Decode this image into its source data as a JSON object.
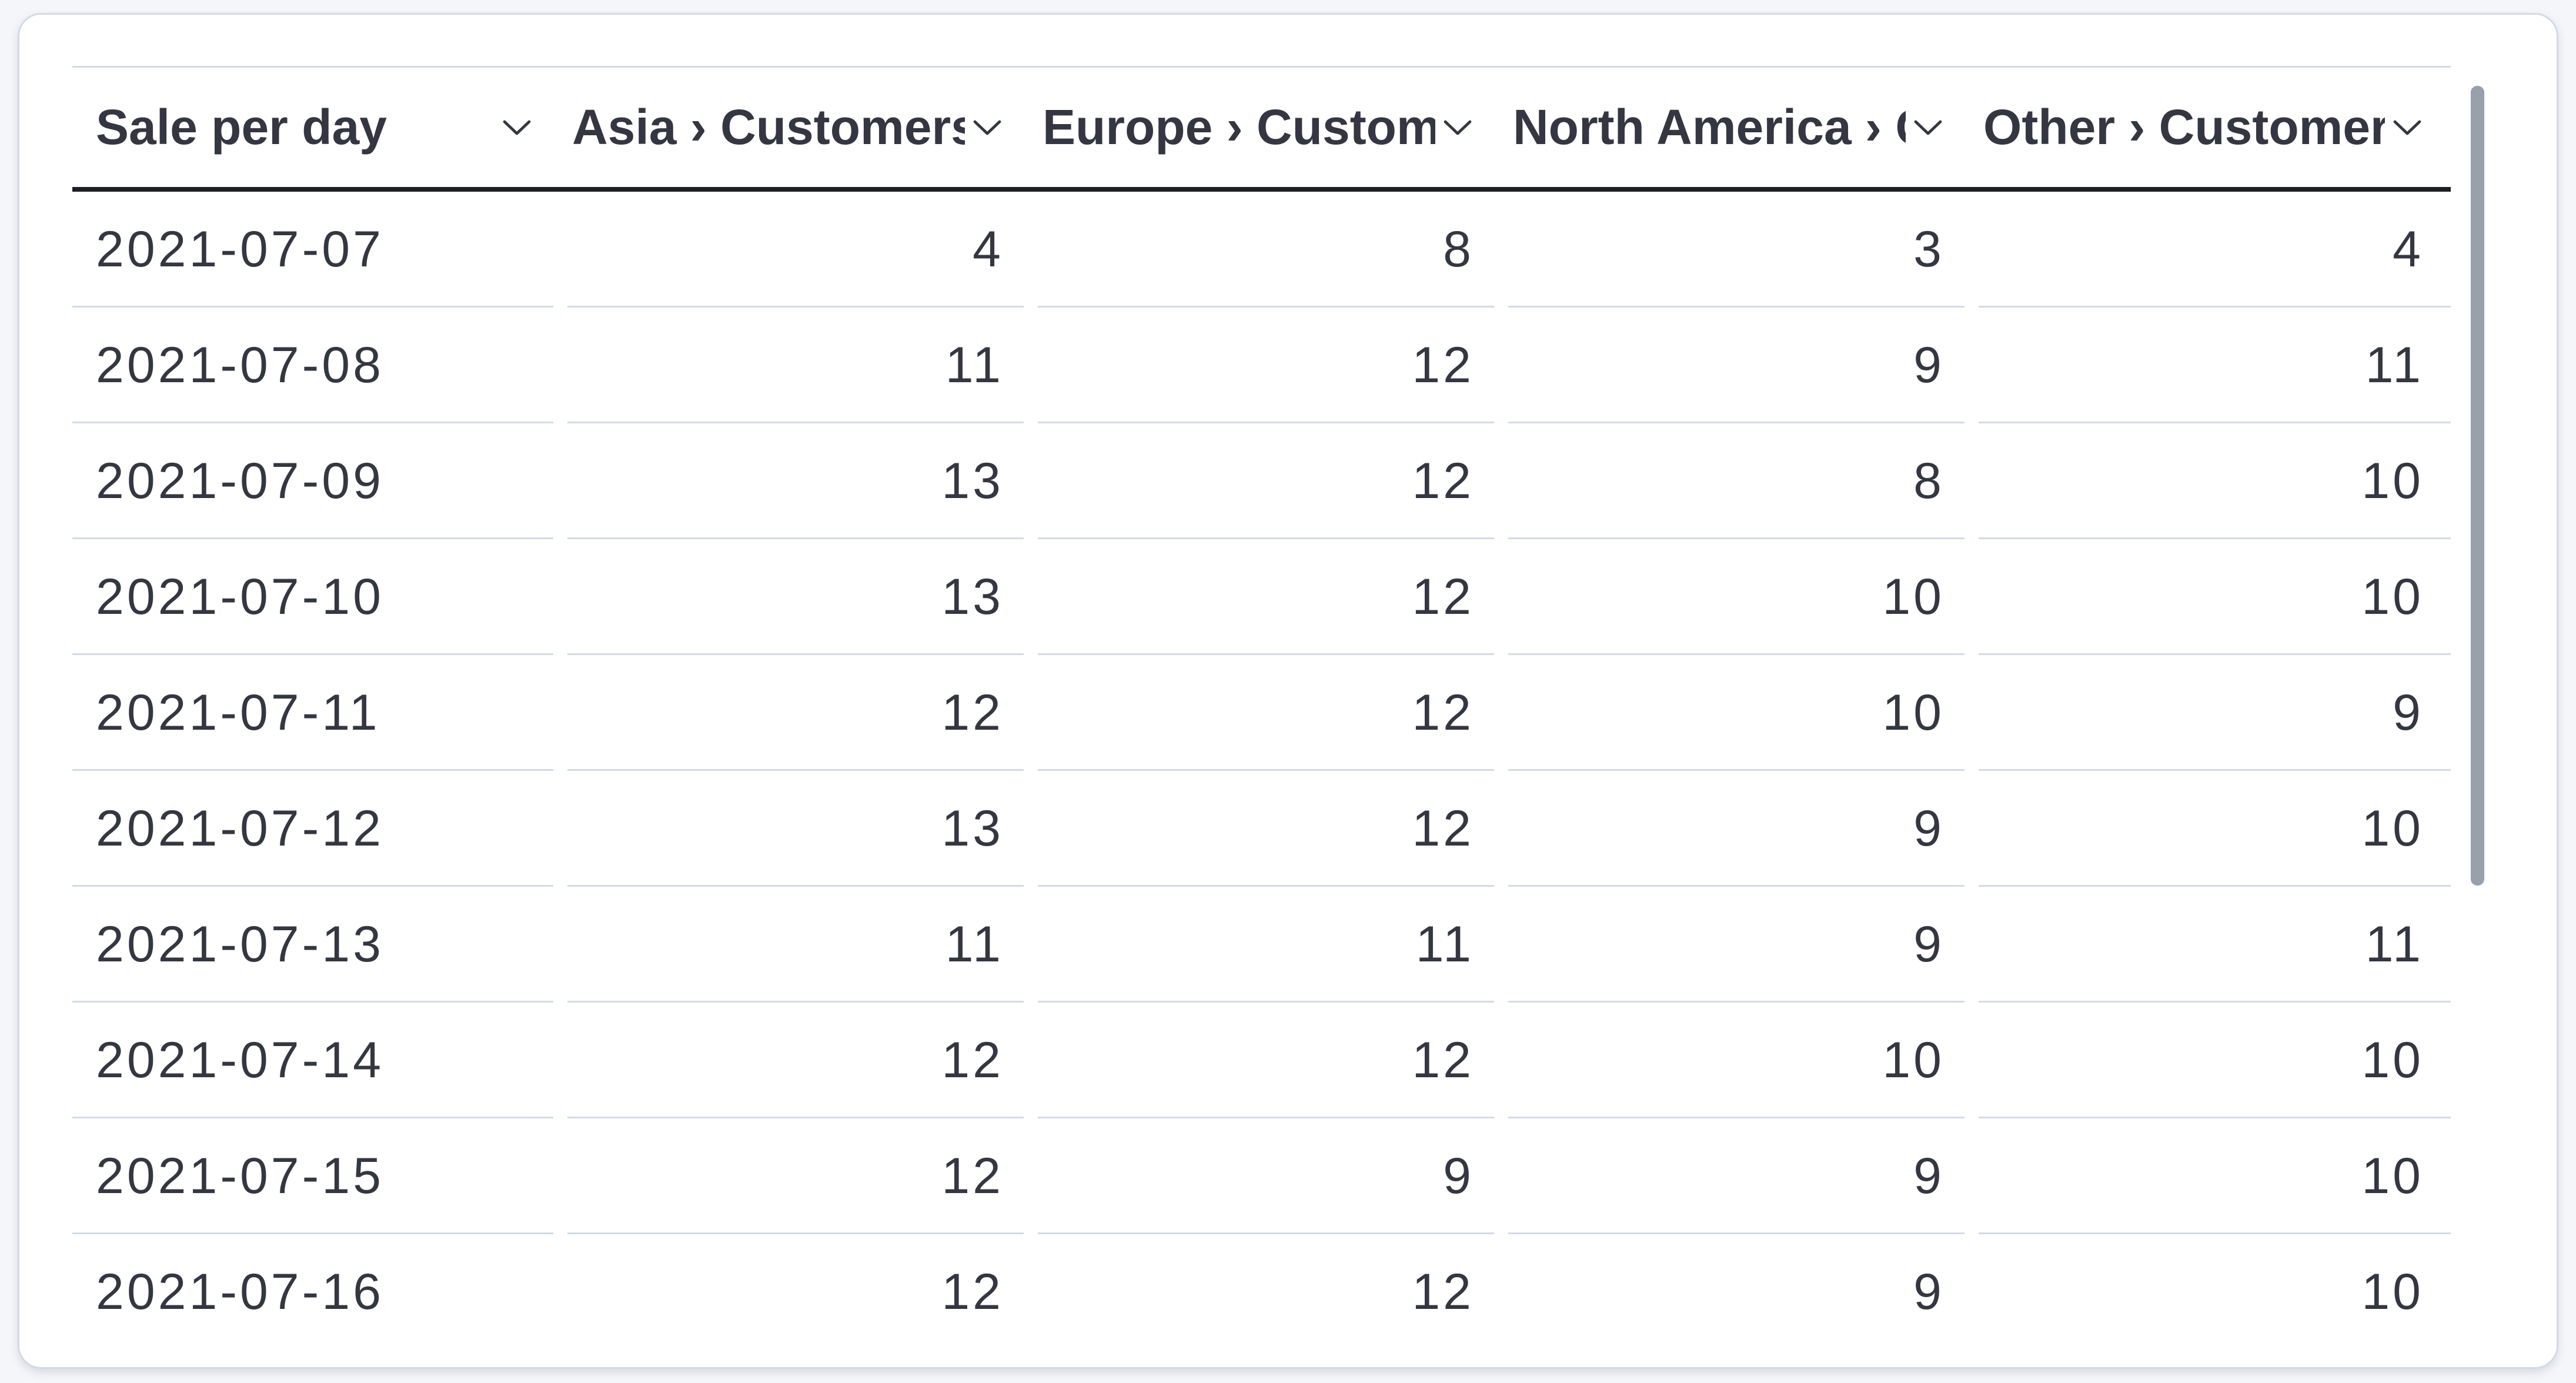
{
  "datatable": {
    "columns": [
      {
        "label": "Sale per day",
        "align": "left"
      },
      {
        "label": "Asia › Customers",
        "align": "right"
      },
      {
        "label": "Europe › Customers",
        "align": "right"
      },
      {
        "label": "North America › Customers",
        "align": "right"
      },
      {
        "label": "Other › Customers",
        "align": "right"
      }
    ],
    "rows": [
      [
        "2021-07-07",
        "4",
        "8",
        "3",
        "4"
      ],
      [
        "2021-07-08",
        "11",
        "12",
        "9",
        "11"
      ],
      [
        "2021-07-09",
        "13",
        "12",
        "8",
        "10"
      ],
      [
        "2021-07-10",
        "13",
        "12",
        "10",
        "10"
      ],
      [
        "2021-07-11",
        "12",
        "12",
        "10",
        "9"
      ],
      [
        "2021-07-12",
        "13",
        "12",
        "9",
        "10"
      ],
      [
        "2021-07-13",
        "11",
        "11",
        "9",
        "11"
      ],
      [
        "2021-07-14",
        "12",
        "12",
        "10",
        "10"
      ],
      [
        "2021-07-15",
        "12",
        "9",
        "9",
        "10"
      ],
      [
        "2021-07-16",
        "12",
        "12",
        "9",
        "10"
      ]
    ]
  },
  "icons": {
    "column_menu": "chevron-down"
  },
  "scrollbar": {
    "orientation": "vertical",
    "thumb_visible": true
  },
  "colors": {
    "text": "#343741",
    "divider": "#d3dae6",
    "header_underline": "#1d1e24",
    "card_border": "#d3dae6",
    "card_bg": "#ffffff",
    "page_bg": "#f4f6f9",
    "scrollbar_thumb": "#98a0ac"
  }
}
